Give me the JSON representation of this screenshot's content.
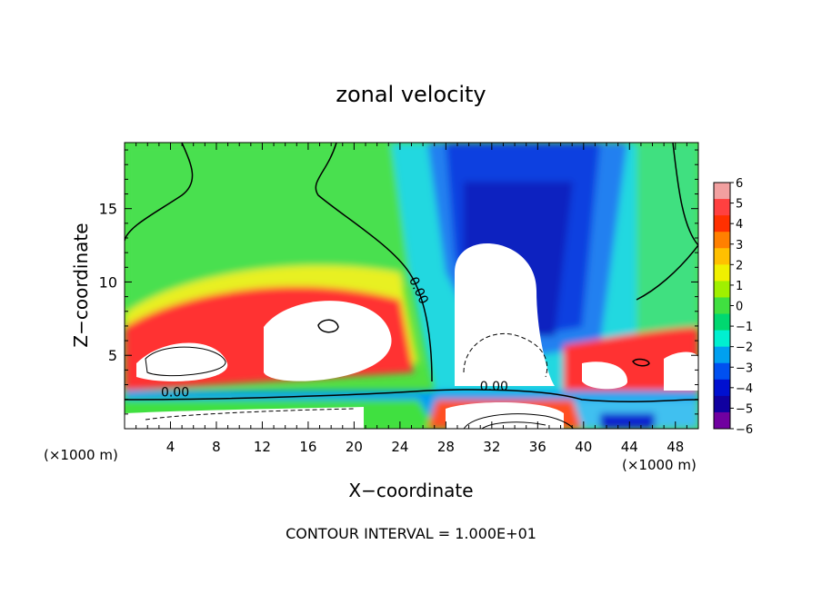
{
  "chart_data": {
    "type": "heatmap",
    "title": "zonal velocity",
    "xlabel": "X−coordinate",
    "ylabel": "Z−coordinate",
    "xunit_left": "(×1000 m)",
    "xunit_right": "(×1000 m)",
    "xlim": [
      0,
      50
    ],
    "ylim": [
      0,
      19.5
    ],
    "xticks": [
      4,
      8,
      12,
      16,
      20,
      24,
      28,
      32,
      36,
      40,
      44,
      48
    ],
    "xtick_labels": [
      "4",
      "8",
      "12",
      "16",
      "20",
      "24",
      "28",
      "32",
      "36",
      "40",
      "44",
      "48"
    ],
    "yticks": [
      5,
      10,
      15
    ],
    "ytick_labels": [
      "5",
      "10",
      "15"
    ],
    "contour_labels": [
      {
        "text": "0.00",
        "x": 4.4,
        "y": 2.2
      },
      {
        "text": "0.00",
        "x": 25.3,
        "y": 9.3,
        "rotate": 65
      },
      {
        "text": "0.00",
        "x": 32.2,
        "y": 2.6
      }
    ],
    "footer": "CONTOUR INTERVAL = 1.000E+01",
    "colorbar": {
      "min": -6,
      "max": 6,
      "tick_labels": [
        "6",
        "5",
        "4",
        "3",
        "2",
        "1",
        "0",
        "−1",
        "−2",
        "−3",
        "−4",
        "−5",
        "−6"
      ],
      "colors": [
        "#f2a0a0",
        "#ff4040",
        "#ff3000",
        "#ff8000",
        "#ffc000",
        "#f0f000",
        "#a0f000",
        "#40e040",
        "#00d870",
        "#00f0d0",
        "#00a0f0",
        "#0050f0",
        "#0010d0",
        "#1000a0",
        "#7000a0"
      ]
    }
  }
}
